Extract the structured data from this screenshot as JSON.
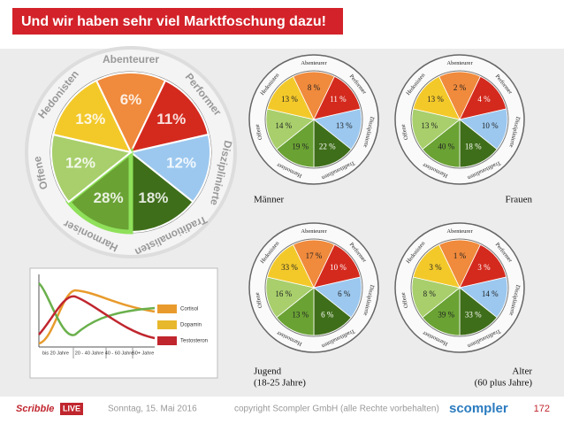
{
  "header": {
    "title": "Und wir haben sehr viel Marktfoschung dazu!"
  },
  "types": [
    "Abenteurer",
    "Performer",
    "Disziplinierte",
    "Traditionalisten",
    "Harmoniser",
    "Offene",
    "Hedonisten"
  ],
  "overview_wheel": {
    "values": [
      "6%",
      "11%",
      "12%",
      "18%",
      "28%",
      "12%",
      "13%"
    ]
  },
  "wheels": [
    {
      "label": [
        "Männer"
      ],
      "values": [
        "8 %",
        "11 %",
        "13 %",
        "22 %",
        "19 %",
        "14 %",
        "13 %"
      ]
    },
    {
      "label": [
        "Frauen"
      ],
      "values": [
        "2 %",
        "4 %",
        "10 %",
        "18 %",
        "40 %",
        "13 %",
        "13 %"
      ]
    },
    {
      "label": [
        "Jugend",
        "(18-25 Jahre)"
      ],
      "values": [
        "17 %",
        "10 %",
        "6 %",
        "6 %",
        "13 %",
        "16 %",
        "33 %"
      ]
    },
    {
      "label": [
        "Alter",
        "(60 plus Jahre)"
      ],
      "values": [
        "1 %",
        "3 %",
        "14 %",
        "33 %",
        "39 %",
        "8 %",
        "3 %"
      ]
    }
  ],
  "hormone_chart": {
    "legend": [
      "Cortisol",
      "Dopamin",
      "Testosteron"
    ],
    "age_groups": [
      "bis 20 Jahre",
      "20 - 40 Jahre",
      "40 - 60 Jahre",
      "60+ Jahre"
    ]
  },
  "footer": {
    "logo_left": [
      "Scribble",
      "LIVE"
    ],
    "date": "Sonntag, 15. Mai 2016",
    "copyright": "copyright Scompler GmbH (alle Rechte vorbehalten)",
    "logo_right": "scompler",
    "page": "172"
  }
}
